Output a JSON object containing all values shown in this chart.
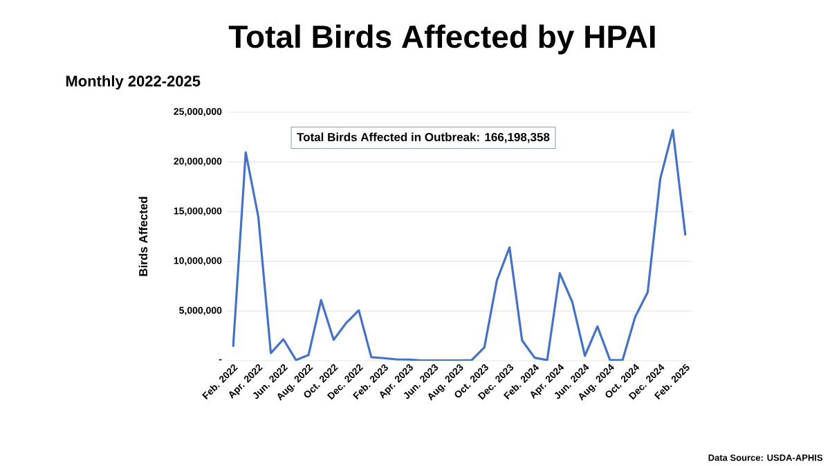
{
  "chart_data": {
    "type": "line",
    "title": "Total Birds Affected by HPAI",
    "subtitle": "Monthly 2022-2025",
    "ylabel": "Birds Affected",
    "categories": [
      "Feb. 2022",
      null,
      "Apr. 2022",
      null,
      "Jun. 2022",
      null,
      "Aug. 2022",
      null,
      "Oct. 2022",
      null,
      "Dec. 2022",
      null,
      "Feb. 2023",
      null,
      "Apr. 2023",
      null,
      "Jun. 2023",
      null,
      "Aug. 2023",
      null,
      "Oct. 2023",
      null,
      "Dec. 2023",
      null,
      "Feb. 2024",
      null,
      "Apr. 2024",
      null,
      "Jun. 2024",
      null,
      "Aug. 2024",
      null,
      "Oct. 2024",
      null,
      "Dec. 2024",
      null,
      "Feb. 2025"
    ],
    "values": [
      1400000,
      20950000,
      14500000,
      770000,
      2160000,
      70000,
      580000,
      6100000,
      2100000,
      3800000,
      5070000,
      350000,
      260000,
      140000,
      120000,
      20000,
      20000,
      20000,
      20000,
      70000,
      1350000,
      8100000,
      11400000,
      2050000,
      300000,
      70000,
      8800000,
      5900000,
      500000,
      3450000,
      70000,
      70000,
      4400000,
      6900000,
      18300000,
      23200000,
      12600000
    ],
    "color": "#4472c4",
    "ylim": [
      0,
      25000000
    ],
    "yticks": [
      {
        "value": 0,
        "label": "-"
      },
      {
        "value": 5000000,
        "label": "5,000,000"
      },
      {
        "value": 10000000,
        "label": "10,000,000"
      },
      {
        "value": 15000000,
        "label": "15,000,000"
      },
      {
        "value": 20000000,
        "label": "20,000,000"
      },
      {
        "value": 25000000,
        "label": "25,000,000"
      }
    ],
    "grid": "y",
    "annotations": [
      "Total Birds Affected in Outbreak: 166,198,358",
      "Data Source:  USDA-APHIS"
    ]
  }
}
